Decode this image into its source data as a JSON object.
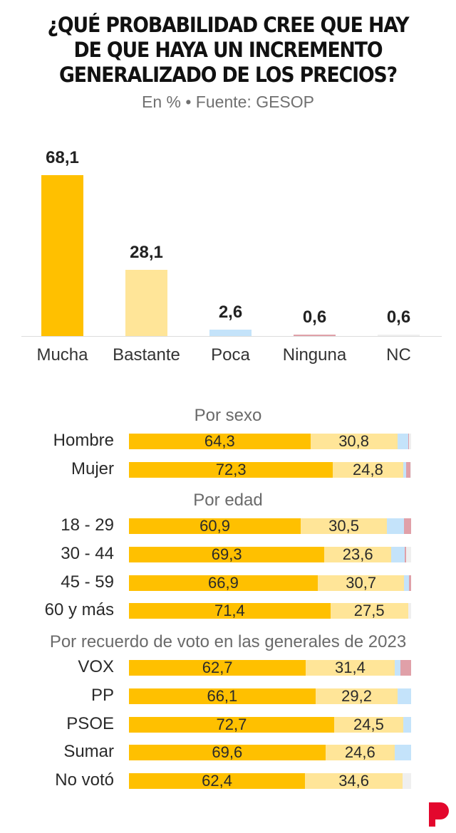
{
  "header": {
    "title_lines": [
      "¿QUÉ PROBABILIDAD CREE QUE HAY",
      "DE QUE HAYA UN INCREMENTO",
      "GENERALIZADO DE LOS PRECIOS?"
    ],
    "subtitle": "En % • Fuente: GESOP"
  },
  "colors": {
    "mucha": "#FFC000",
    "bastante": "#FFE598",
    "poca": "#C4E3FA",
    "ninguna": "#E0A0A8",
    "nc": "#EFEFEF",
    "brand": "#E3072D"
  },
  "chart_data": [
    {
      "type": "bar",
      "title": "¿Qué probabilidad cree que hay de que haya un incremento generalizado de los precios?",
      "subtitle": "En % • Fuente: GESOP",
      "categories": [
        "Mucha",
        "Bastante",
        "Poca",
        "Ninguna",
        "NC"
      ],
      "values": [
        68.1,
        28.1,
        2.6,
        0.6,
        0.6
      ],
      "value_labels": [
        "68,1",
        "28,1",
        "2,6",
        "0,6",
        "0,6"
      ],
      "xlabel": "",
      "ylabel": "",
      "ylim": [
        0,
        70
      ],
      "grid": false
    },
    {
      "type": "bar",
      "orientation": "horizontal",
      "stacked": true,
      "legend": [
        "Mucha",
        "Bastante",
        "Poca",
        "Ninguna",
        "NC"
      ],
      "groups": [
        {
          "title": "Por sexo",
          "rows": [
            {
              "label": "Hombre",
              "values": [
                64.3,
                30.8,
                3.8,
                0.4,
                0.7
              ],
              "labels": [
                "64,3",
                "30,8"
              ]
            },
            {
              "label": "Mujer",
              "values": [
                72.3,
                24.8,
                1.2,
                1.4,
                0.3
              ],
              "labels": [
                "72,3",
                "24,8"
              ]
            }
          ]
        },
        {
          "title": "Por edad",
          "rows": [
            {
              "label": "18 - 29",
              "values": [
                60.9,
                30.5,
                6.1,
                2.5,
                0.0
              ],
              "labels": [
                "60,9",
                "30,5"
              ]
            },
            {
              "label": "30 - 44",
              "values": [
                69.3,
                23.6,
                4.8,
                0.6,
                1.7
              ],
              "labels": [
                "69,3",
                "23,6"
              ]
            },
            {
              "label": "45 - 59",
              "values": [
                66.9,
                30.7,
                1.7,
                0.7,
                0.0
              ],
              "labels": [
                "66,9",
                "30,7"
              ]
            },
            {
              "label": "60 y más",
              "values": [
                71.4,
                27.5,
                0.0,
                0.0,
                1.1
              ],
              "labels": [
                "71,4",
                "27,5"
              ]
            }
          ]
        },
        {
          "title": "Por recuerdo de voto en las generales de 2023",
          "rows": [
            {
              "label": "VOX",
              "values": [
                62.7,
                31.4,
                2.2,
                3.7,
                0.0
              ],
              "labels": [
                "62,7",
                "31,4"
              ]
            },
            {
              "label": "PP",
              "values": [
                66.1,
                29.2,
                4.7,
                0.0,
                0.0
              ],
              "labels": [
                "66,1",
                "29,2"
              ]
            },
            {
              "label": "PSOE",
              "values": [
                72.7,
                24.5,
                2.8,
                0.0,
                0.0
              ],
              "labels": [
                "72,7",
                "24,5"
              ]
            },
            {
              "label": "Sumar",
              "values": [
                69.6,
                24.6,
                5.8,
                0.0,
                0.0
              ],
              "labels": [
                "69,6",
                "24,6"
              ]
            },
            {
              "label": "No votó",
              "values": [
                62.4,
                34.6,
                0.0,
                0.0,
                3.0
              ],
              "labels": [
                "62,4",
                "34,6"
              ]
            }
          ]
        }
      ],
      "xlim": [
        0,
        100
      ]
    }
  ],
  "logo": {
    "icon": "brand-p-logo"
  }
}
